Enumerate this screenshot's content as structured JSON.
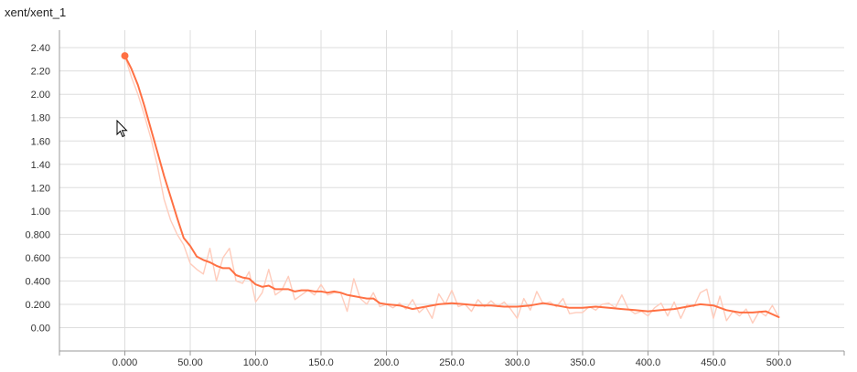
{
  "chart_title": "xent/xent_1",
  "colors": {
    "line": "#ff7043",
    "line_raw": "#ffccbc",
    "grid": "#dddddd",
    "axis": "#999999"
  },
  "chart_data": {
    "type": "line",
    "title": "xent/xent_1",
    "xlabel": "",
    "ylabel": "",
    "xlim": [
      -50,
      550
    ],
    "ylim": [
      -0.2,
      2.55
    ],
    "grid": true,
    "x_ticks": [
      0,
      50,
      100,
      150,
      200,
      250,
      300,
      350,
      400,
      450,
      500
    ],
    "x_tick_labels": [
      "0.000",
      "50.00",
      "100.0",
      "150.0",
      "200.0",
      "250.0",
      "300.0",
      "350.0",
      "400.0",
      "450.0",
      "500.0"
    ],
    "y_ticks": [
      0,
      0.2,
      0.4,
      0.6,
      0.8,
      1.0,
      1.2,
      1.4,
      1.6,
      1.8,
      2.0,
      2.2,
      2.4
    ],
    "y_tick_labels": [
      "0.00",
      "0.200",
      "0.400",
      "0.600",
      "0.800",
      "1.00",
      "1.20",
      "1.40",
      "1.60",
      "1.80",
      "2.00",
      "2.20",
      "2.40"
    ],
    "series": [
      {
        "role": "smoothed",
        "color": "#ff7043",
        "x": [
          0,
          5,
          10,
          15,
          20,
          25,
          30,
          35,
          40,
          45,
          50,
          55,
          60,
          65,
          70,
          75,
          80,
          85,
          90,
          95,
          100,
          105,
          110,
          115,
          120,
          125,
          130,
          135,
          140,
          145,
          150,
          155,
          160,
          165,
          170,
          175,
          180,
          185,
          190,
          195,
          200,
          210,
          220,
          230,
          240,
          250,
          260,
          270,
          280,
          290,
          300,
          310,
          320,
          330,
          340,
          350,
          360,
          370,
          380,
          390,
          400,
          410,
          420,
          430,
          440,
          450,
          460,
          470,
          480,
          490,
          500
        ],
        "y": [
          2.33,
          2.22,
          2.08,
          1.9,
          1.7,
          1.5,
          1.3,
          1.12,
          0.94,
          0.77,
          0.7,
          0.61,
          0.58,
          0.56,
          0.53,
          0.51,
          0.51,
          0.45,
          0.43,
          0.42,
          0.37,
          0.35,
          0.36,
          0.33,
          0.33,
          0.33,
          0.31,
          0.32,
          0.32,
          0.31,
          0.31,
          0.3,
          0.31,
          0.3,
          0.28,
          0.27,
          0.26,
          0.25,
          0.25,
          0.21,
          0.2,
          0.19,
          0.16,
          0.18,
          0.2,
          0.21,
          0.2,
          0.19,
          0.19,
          0.18,
          0.18,
          0.19,
          0.21,
          0.19,
          0.17,
          0.17,
          0.18,
          0.17,
          0.16,
          0.15,
          0.14,
          0.15,
          0.16,
          0.18,
          0.2,
          0.19,
          0.15,
          0.13,
          0.13,
          0.14,
          0.09
        ]
      },
      {
        "role": "raw",
        "color": "#ffccbc",
        "x": [
          0,
          5,
          10,
          15,
          20,
          25,
          30,
          35,
          40,
          45,
          50,
          55,
          60,
          65,
          70,
          75,
          80,
          85,
          90,
          95,
          100,
          105,
          110,
          115,
          120,
          125,
          130,
          135,
          140,
          145,
          150,
          155,
          160,
          165,
          170,
          175,
          180,
          185,
          190,
          195,
          200,
          205,
          210,
          215,
          220,
          225,
          230,
          235,
          240,
          245,
          250,
          255,
          260,
          265,
          270,
          275,
          280,
          285,
          290,
          295,
          300,
          305,
          310,
          315,
          320,
          325,
          330,
          335,
          340,
          345,
          350,
          355,
          360,
          365,
          370,
          375,
          380,
          385,
          390,
          395,
          400,
          405,
          410,
          415,
          420,
          425,
          430,
          435,
          440,
          445,
          450,
          455,
          460,
          465,
          470,
          475,
          480,
          485,
          490,
          495,
          500
        ],
        "y": [
          2.33,
          2.15,
          2.0,
          1.82,
          1.62,
          1.38,
          1.1,
          0.92,
          0.8,
          0.71,
          0.55,
          0.5,
          0.46,
          0.68,
          0.4,
          0.6,
          0.68,
          0.4,
          0.38,
          0.48,
          0.22,
          0.3,
          0.5,
          0.28,
          0.32,
          0.44,
          0.24,
          0.28,
          0.32,
          0.28,
          0.37,
          0.28,
          0.3,
          0.3,
          0.14,
          0.42,
          0.25,
          0.2,
          0.3,
          0.18,
          0.2,
          0.17,
          0.21,
          0.16,
          0.24,
          0.13,
          0.18,
          0.08,
          0.29,
          0.2,
          0.32,
          0.18,
          0.2,
          0.14,
          0.24,
          0.18,
          0.23,
          0.18,
          0.22,
          0.16,
          0.08,
          0.25,
          0.15,
          0.31,
          0.2,
          0.22,
          0.18,
          0.25,
          0.12,
          0.13,
          0.13,
          0.18,
          0.15,
          0.2,
          0.21,
          0.17,
          0.28,
          0.16,
          0.12,
          0.14,
          0.1,
          0.17,
          0.21,
          0.1,
          0.22,
          0.08,
          0.2,
          0.18,
          0.3,
          0.33,
          0.08,
          0.27,
          0.06,
          0.14,
          0.1,
          0.16,
          0.04,
          0.14,
          0.1,
          0.19,
          0.09
        ]
      }
    ],
    "highlight_point": {
      "x": 0,
      "y": 2.33
    }
  }
}
